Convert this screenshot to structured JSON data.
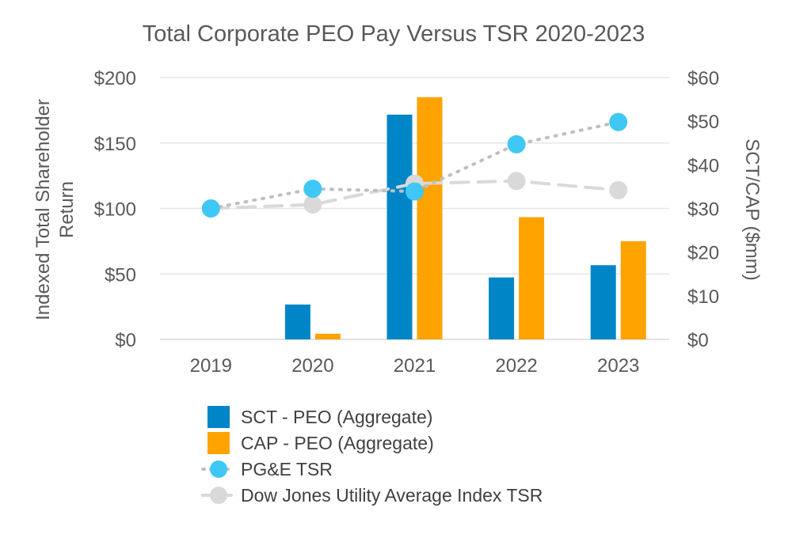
{
  "chart_data": {
    "type": "bar",
    "title": "Total Corporate PEO Pay Versus TSR 2020-2023",
    "categories": [
      "2019",
      "2020",
      "2021",
      "2022",
      "2023"
    ],
    "y_left": {
      "label_lines": [
        "Indexed Total Shareholder",
        "Return"
      ],
      "range": [
        0,
        200
      ],
      "ticks": [
        0,
        50,
        100,
        150,
        200
      ],
      "tick_labels": [
        "$0",
        "$50",
        "$100",
        "$150",
        "$200"
      ]
    },
    "y_right": {
      "label": "SCT/CAP ($mm)",
      "range": [
        0,
        60
      ],
      "ticks": [
        0,
        10,
        20,
        30,
        40,
        50,
        60
      ],
      "tick_labels": [
        "$0",
        "$10",
        "$20",
        "$30",
        "$40",
        "$50",
        "$60"
      ]
    },
    "grid": true,
    "legend_position": "bottom",
    "bar_series": [
      {
        "name": "SCT - PEO (Aggregate)",
        "axis": "right",
        "color": "#0086C6",
        "values": [
          null,
          8.0,
          51.5,
          14.2,
          17.0
        ]
      },
      {
        "name": "CAP - PEO (Aggregate)",
        "axis": "right",
        "color": "#FFA300",
        "values": [
          null,
          1.3,
          55.5,
          28.0,
          22.5
        ]
      }
    ],
    "line_series": [
      {
        "name": "PG&E TSR",
        "axis": "left",
        "color": "#3FC8F5",
        "line_color": "#BFBFBF",
        "style": "dotted",
        "values": [
          100,
          115,
          113,
          149,
          166
        ]
      },
      {
        "name": "Dow Jones Utility Average Index TSR",
        "axis": "left",
        "color": "#D9D9D9",
        "line_color": "#D9D9D9",
        "style": "dashed",
        "values": [
          100,
          103,
          119,
          121,
          114
        ]
      }
    ]
  }
}
